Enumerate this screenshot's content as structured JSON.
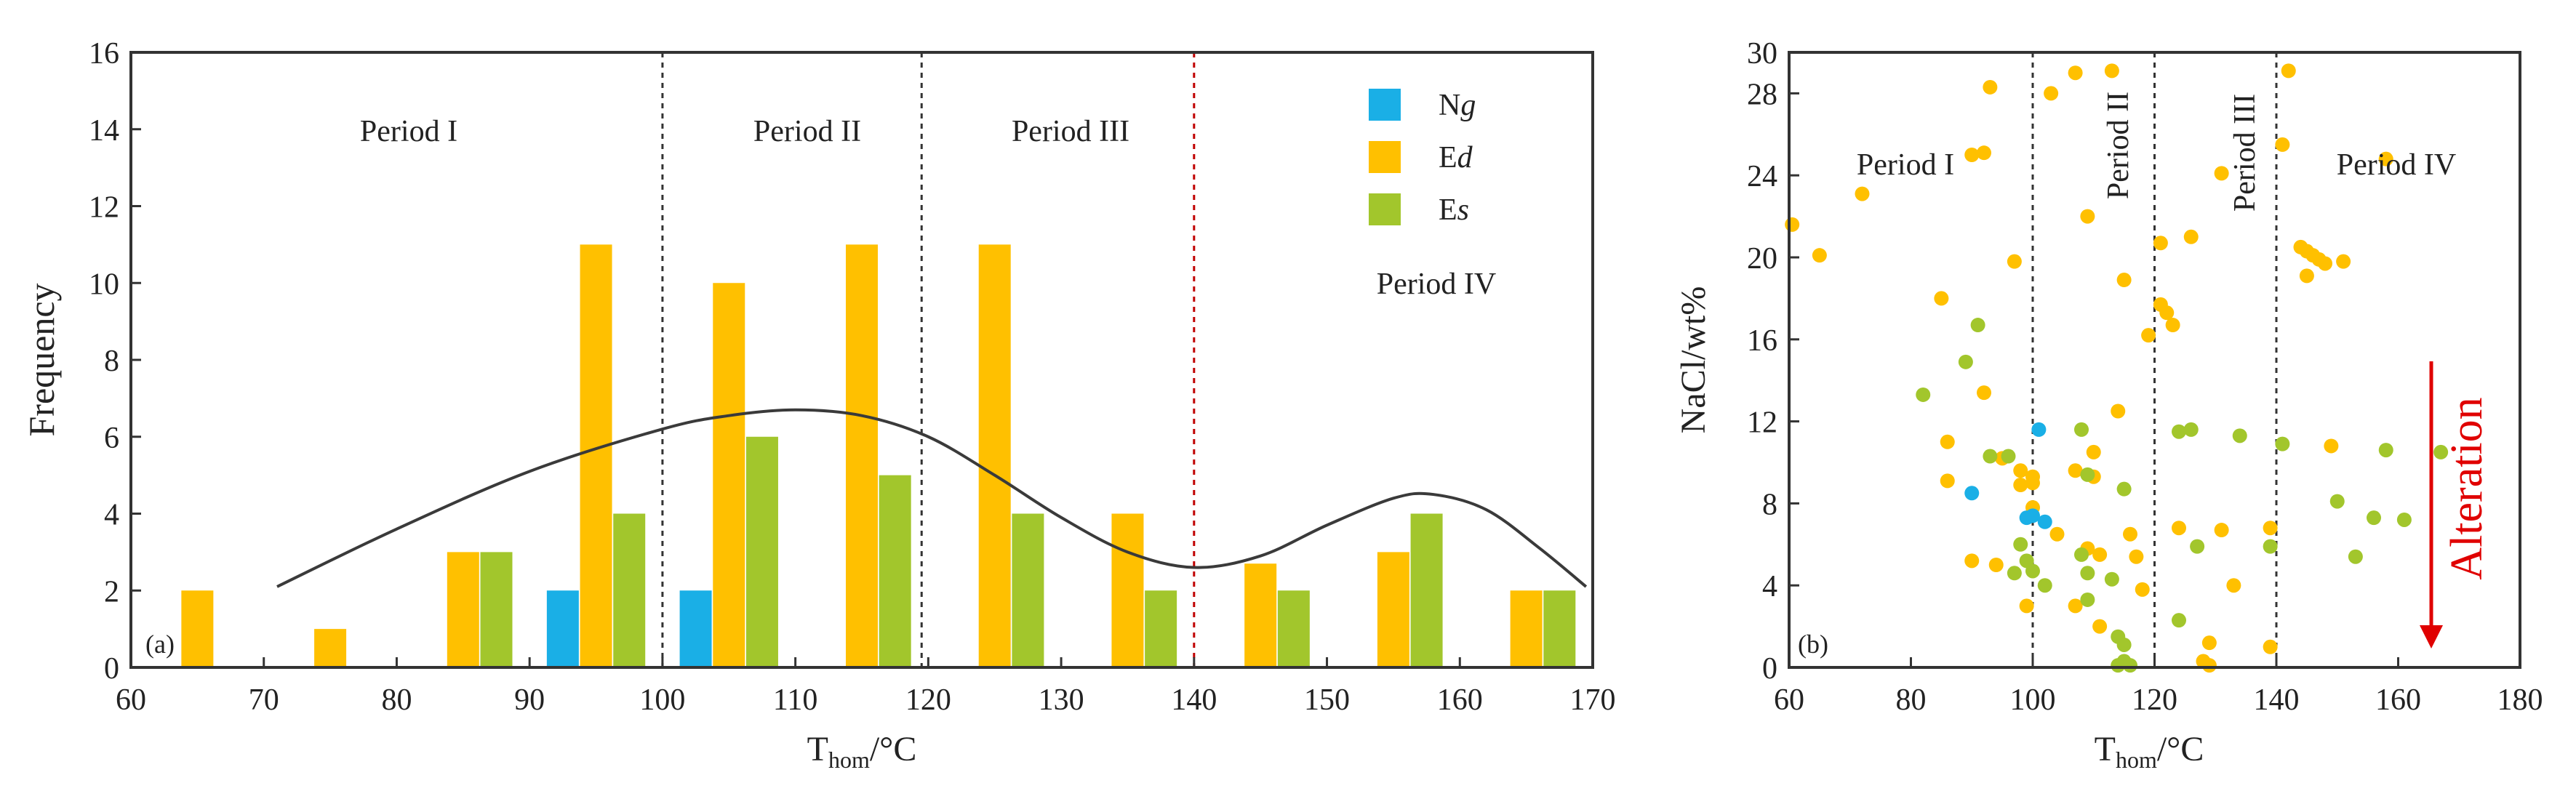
{
  "chart_data": [
    {
      "type": "bar",
      "panel_label": "(a)",
      "ylabel": "Frequency",
      "xlabel": {
        "main": "T",
        "sub": "hom",
        "unit": "/°C"
      },
      "xlim": [
        60,
        170
      ],
      "ylim": [
        0,
        16
      ],
      "xticks": [
        60,
        70,
        80,
        90,
        100,
        110,
        120,
        130,
        140,
        150,
        160,
        170
      ],
      "yticks": [
        0,
        2,
        4,
        6,
        8,
        10,
        12,
        14,
        16
      ],
      "series": [
        {
          "name": "Ng",
          "legend_main": "N",
          "legend_italic": "g",
          "color": "#1AAFE6",
          "points": [
            {
              "x": 92.5,
              "y": 2
            },
            {
              "x": 102.5,
              "y": 2
            }
          ]
        },
        {
          "name": "Ed",
          "legend_main": "E",
          "legend_italic": "d",
          "color": "#FFC000",
          "points": [
            {
              "x": 65,
              "y": 2
            },
            {
              "x": 75,
              "y": 1
            },
            {
              "x": 85,
              "y": 3
            },
            {
              "x": 95,
              "y": 11
            },
            {
              "x": 105,
              "y": 10
            },
            {
              "x": 115,
              "y": 11
            },
            {
              "x": 125,
              "y": 11
            },
            {
              "x": 135,
              "y": 4
            },
            {
              "x": 145,
              "y": 2.7
            },
            {
              "x": 155,
              "y": 3
            },
            {
              "x": 165,
              "y": 2
            }
          ]
        },
        {
          "name": "Es",
          "legend_main": "E",
          "legend_italic": "s",
          "color": "#A2C62C",
          "points": [
            {
              "x": 87.5,
              "y": 3
            },
            {
              "x": 97.5,
              "y": 4
            },
            {
              "x": 107.5,
              "y": 6
            },
            {
              "x": 117.5,
              "y": 5
            },
            {
              "x": 127.5,
              "y": 4
            },
            {
              "x": 137.5,
              "y": 2
            },
            {
              "x": 147.5,
              "y": 2
            },
            {
              "x": 157.5,
              "y": 4
            },
            {
              "x": 167.5,
              "y": 2
            }
          ]
        }
      ],
      "fit_curve": [
        [
          71,
          2.1
        ],
        [
          80,
          3.6
        ],
        [
          90,
          5.1
        ],
        [
          100,
          6.2
        ],
        [
          105,
          6.55
        ],
        [
          110,
          6.7
        ],
        [
          115,
          6.55
        ],
        [
          120,
          6.0
        ],
        [
          125,
          5.0
        ],
        [
          130,
          3.9
        ],
        [
          135,
          3.0
        ],
        [
          140,
          2.6
        ],
        [
          145,
          2.9
        ],
        [
          150,
          3.7
        ],
        [
          155,
          4.4
        ],
        [
          158,
          4.5
        ],
        [
          162,
          4.1
        ],
        [
          166,
          3.1
        ],
        [
          169.5,
          2.1
        ]
      ],
      "vlines": [
        {
          "x": 100,
          "color": "#333333"
        },
        {
          "x": 119.5,
          "color": "#333333"
        },
        {
          "x": 140,
          "color": "#C00000"
        }
      ],
      "period_labels": [
        "Period I",
        "Period II",
        "Period III",
        "Period IV"
      ]
    },
    {
      "type": "scatter",
      "panel_label": "(b)",
      "ylabel": "NaCl/wt%",
      "xlabel": {
        "main": "T",
        "sub": "hom",
        "unit": "/°C"
      },
      "xlim": [
        60,
        180
      ],
      "ylim": [
        0,
        30
      ],
      "xticks": [
        60,
        80,
        100,
        120,
        140,
        160,
        180
      ],
      "yticks": [
        0,
        4,
        8,
        12,
        16,
        20,
        24,
        28,
        30
      ],
      "vlines": [
        100,
        120,
        140
      ],
      "period_labels": [
        "Period I",
        "Period II",
        "Period III",
        "Period IV"
      ],
      "annotation": "Alteration",
      "series": [
        {
          "name": "Ed",
          "color": "#FFC000",
          "points": [
            [
              60.5,
              21.6
            ],
            [
              65,
              20.1
            ],
            [
              72,
              23.1
            ],
            [
              85,
              18.0
            ],
            [
              86,
              11.0
            ],
            [
              86,
              9.1
            ],
            [
              90,
              25.0
            ],
            [
              92,
              25.1
            ],
            [
              93,
              28.3
            ],
            [
              97,
              19.8
            ],
            [
              103,
              28.0
            ],
            [
              107,
              29.0
            ],
            [
              109,
              22.0
            ],
            [
              113,
              29.1
            ],
            [
              115,
              18.9
            ],
            [
              121,
              20.7
            ],
            [
              121,
              17.7
            ],
            [
              122,
              17.3
            ],
            [
              123,
              16.7
            ],
            [
              119,
              16.2
            ],
            [
              126,
              21.0
            ],
            [
              131,
              24.1
            ],
            [
              141,
              25.5
            ],
            [
              142,
              29.1
            ],
            [
              158,
              24.8
            ],
            [
              144,
              20.5
            ],
            [
              145,
              20.3
            ],
            [
              146,
              20.1
            ],
            [
              147,
              19.9
            ],
            [
              148,
              19.7
            ],
            [
              151,
              19.8
            ],
            [
              145,
              19.1
            ],
            [
              92,
              13.4
            ],
            [
              95,
              10.2
            ],
            [
              98,
              9.6
            ],
            [
              98,
              8.9
            ],
            [
              100,
              9.3
            ],
            [
              100,
              9.0
            ],
            [
              110,
              9.3
            ],
            [
              110,
              10.5
            ],
            [
              114,
              12.5
            ],
            [
              107,
              9.6
            ],
            [
              104,
              6.5
            ],
            [
              100,
              7.8
            ],
            [
              99,
              3.0
            ],
            [
              94,
              5.0
            ],
            [
              90,
              5.2
            ],
            [
              116,
              6.5
            ],
            [
              109,
              5.8
            ],
            [
              111,
              5.5
            ],
            [
              117,
              5.4
            ],
            [
              118,
              3.8
            ],
            [
              107,
              3.0
            ],
            [
              111,
              2.0
            ],
            [
              124,
              6.8
            ],
            [
              131,
              6.7
            ],
            [
              133,
              4.0
            ],
            [
              139,
              6.8
            ],
            [
              139,
              1.0
            ],
            [
              129,
              1.2
            ],
            [
              128,
              0.3
            ],
            [
              129,
              0.1
            ],
            [
              149,
              10.8
            ]
          ]
        },
        {
          "name": "Es",
          "color": "#A2C62C",
          "points": [
            [
              82,
              13.3
            ],
            [
              89,
              14.9
            ],
            [
              91,
              16.7
            ],
            [
              93,
              10.3
            ],
            [
              96,
              10.3
            ],
            [
              98,
              6.0
            ],
            [
              97,
              4.6
            ],
            [
              99,
              5.2
            ],
            [
              100,
              4.7
            ],
            [
              102,
              4.0
            ],
            [
              108,
              11.6
            ],
            [
              109,
              9.4
            ],
            [
              115,
              8.7
            ],
            [
              108,
              5.5
            ],
            [
              109,
              4.6
            ],
            [
              109,
              3.3
            ],
            [
              113,
              4.3
            ],
            [
              114,
              1.5
            ],
            [
              115,
              1.1
            ],
            [
              115,
              0.3
            ],
            [
              114,
              0.1
            ],
            [
              116,
              0.1
            ],
            [
              124,
              11.5
            ],
            [
              126,
              11.6
            ],
            [
              127,
              5.9
            ],
            [
              124,
              2.3
            ],
            [
              134,
              11.3
            ],
            [
              139,
              5.9
            ],
            [
              141,
              10.9
            ],
            [
              150,
              8.1
            ],
            [
              153,
              5.4
            ],
            [
              156,
              7.3
            ],
            [
              158,
              10.6
            ],
            [
              161,
              7.2
            ],
            [
              167,
              10.5
            ]
          ]
        },
        {
          "name": "Ng",
          "color": "#1AAFE6",
          "points": [
            [
              90,
              8.5
            ],
            [
              99,
              7.3
            ],
            [
              100,
              7.4
            ],
            [
              101,
              11.6
            ],
            [
              102,
              7.1
            ]
          ]
        }
      ]
    }
  ]
}
